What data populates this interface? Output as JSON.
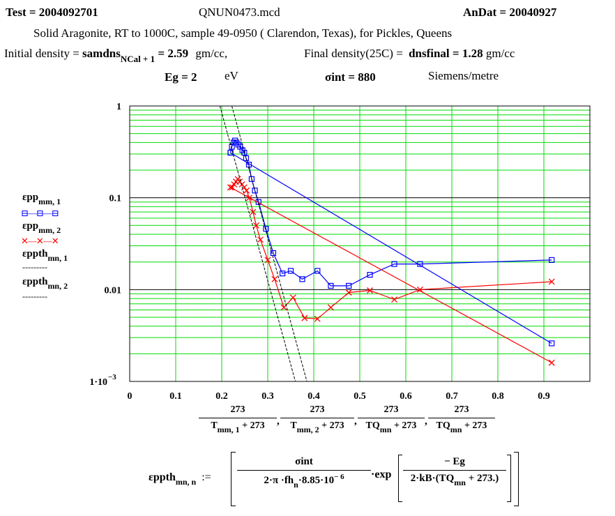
{
  "header": {
    "test_label": "Test = 2004092701",
    "file_name": "QNUN0473.mcd",
    "andat_label": "AnDat = 20040927",
    "description": "Solid Aragonite, RT to 1000C, sample 49-0950 ( Clarendon, Texas),  for Pickles, Queens",
    "initial_density_label": "Initial density =",
    "initial_density_var": "samdns",
    "initial_density_sub": "NCal + 1",
    "initial_density_value": " = 2.59",
    "initial_density_unit": "gm/cc,",
    "final_density_label": "Final density(25C) =",
    "final_density_var": "dnsfinal",
    "final_density_value": " = 1.28",
    "final_density_unit": "gm/cc",
    "eg_label": "Eg = 2",
    "eg_unit": "eV",
    "sigma_label": "σint = 880",
    "sigma_unit": "Siemens/metre"
  },
  "legend": [
    {
      "main": "εpp",
      "sub": "mm, 1",
      "marker": "⊟—⊟—⊟",
      "color": "#0000ff"
    },
    {
      "main": "εpp",
      "sub": "mm, 2",
      "marker": "✕—✕—✕",
      "color": "#ff0000"
    },
    {
      "main": "εppth",
      "sub": "mn, 1",
      "marker": "---------",
      "color": "#000000"
    },
    {
      "main": "εppth",
      "sub": "mn, 2",
      "marker": "---------",
      "color": "#000000"
    }
  ],
  "xaxis_expression": {
    "terms": [
      {
        "num": "273",
        "den": "T",
        "den_sub": "mm, 1",
        "den_tail": " + 273"
      },
      {
        "num": "273",
        "den": "T",
        "den_sub": "mm, 2",
        "den_tail": " + 273"
      },
      {
        "num": "273",
        "den": "TQ",
        "den_sub": "mn",
        "den_tail": " + 273"
      },
      {
        "num": "273",
        "den": "TQ",
        "den_sub": "mn",
        "den_tail": " + 273"
      }
    ]
  },
  "formula": {
    "lhs": "εppth",
    "lhs_sub": "mn, n",
    "assign": ":=",
    "num1": "σint",
    "den1": "2·π ·fh",
    "den1_sub": "n",
    "den1_tail": "·8.85·10",
    "den1_exp": "− 6",
    "exp_word": "·exp",
    "num2": "− Eg",
    "den2": "2·kB·(TQ",
    "den2_sub": "mn",
    "den2_tail": " + 273.)"
  },
  "chart_data": {
    "type": "scatter",
    "xlim": [
      0,
      1
    ],
    "ylim_log10": [
      -3,
      0
    ],
    "y_scale": "log",
    "x_ticks": [
      0,
      0.1,
      0.2,
      0.3,
      0.4,
      0.5,
      0.6,
      0.7,
      0.8,
      0.9
    ],
    "x_tick_labels": [
      "0",
      "0.1",
      "0.2",
      "0.3",
      "0.4",
      "0.5",
      "0.6",
      "0.7",
      "0.8",
      "0.9"
    ],
    "y_major": [
      0.001,
      0.01,
      0.1,
      1
    ],
    "y_tick_labels": [
      "1·10",
      "0.01",
      "0.1",
      "1"
    ],
    "y_tick_label_exp": "−3",
    "grid": true,
    "grid_color": "#00dd00",
    "series": [
      {
        "name": "εpp mm,1",
        "color": "#0000ff",
        "marker": "square",
        "x": [
          0.917,
          0.631,
          0.575,
          0.522,
          0.476,
          0.437,
          0.408,
          0.375,
          0.35,
          0.332,
          0.312,
          0.296,
          0.28,
          0.272,
          0.265,
          0.259,
          0.253,
          0.249,
          0.245,
          0.24,
          0.236,
          0.232,
          0.229,
          0.226,
          0.222,
          0.219
        ],
        "y": [
          0.021,
          0.019,
          0.019,
          0.0145,
          0.011,
          0.011,
          0.016,
          0.013,
          0.016,
          0.015,
          0.025,
          0.046,
          0.09,
          0.12,
          0.16,
          0.23,
          0.27,
          0.31,
          0.33,
          0.36,
          0.38,
          0.4,
          0.42,
          0.4,
          0.36,
          0.31
        ]
      },
      {
        "name": "εpp mm,2",
        "color": "#ff0000",
        "marker": "x",
        "x": [
          0.917,
          0.631,
          0.575,
          0.522,
          0.476,
          0.437,
          0.408,
          0.38,
          0.355,
          0.335,
          0.315,
          0.3,
          0.284,
          0.275,
          0.268,
          0.26,
          0.254,
          0.249,
          0.244,
          0.239,
          0.235,
          0.231,
          0.227,
          0.223,
          0.219
        ],
        "y": [
          0.0122,
          0.01,
          0.0078,
          0.0098,
          0.0093,
          0.0064,
          0.0048,
          0.0049,
          0.0082,
          0.0064,
          0.013,
          0.021,
          0.035,
          0.05,
          0.07,
          0.1,
          0.12,
          0.13,
          0.14,
          0.15,
          0.16,
          0.15,
          0.14,
          0.13,
          0.13
        ]
      },
      {
        "name": "εpp mm,1 fit",
        "color": "#0000ff",
        "marker": "square",
        "x": [
          0.219,
          0.917
        ],
        "y": [
          0.31,
          0.0026
        ]
      },
      {
        "name": "εpp mm,2 fit",
        "color": "#ff0000",
        "marker": "x",
        "x": [
          0.219,
          0.917
        ],
        "y": [
          0.13,
          0.0016
        ]
      },
      {
        "name": "εppth mn,1",
        "color": "#000000",
        "dashed": true,
        "x": [
          0.196,
          0.36
        ],
        "y": [
          1.0,
          0.001
        ]
      },
      {
        "name": "εppth mn,2",
        "color": "#000000",
        "dashed": true,
        "x": [
          0.222,
          0.385
        ],
        "y": [
          1.0,
          0.001
        ]
      }
    ]
  }
}
